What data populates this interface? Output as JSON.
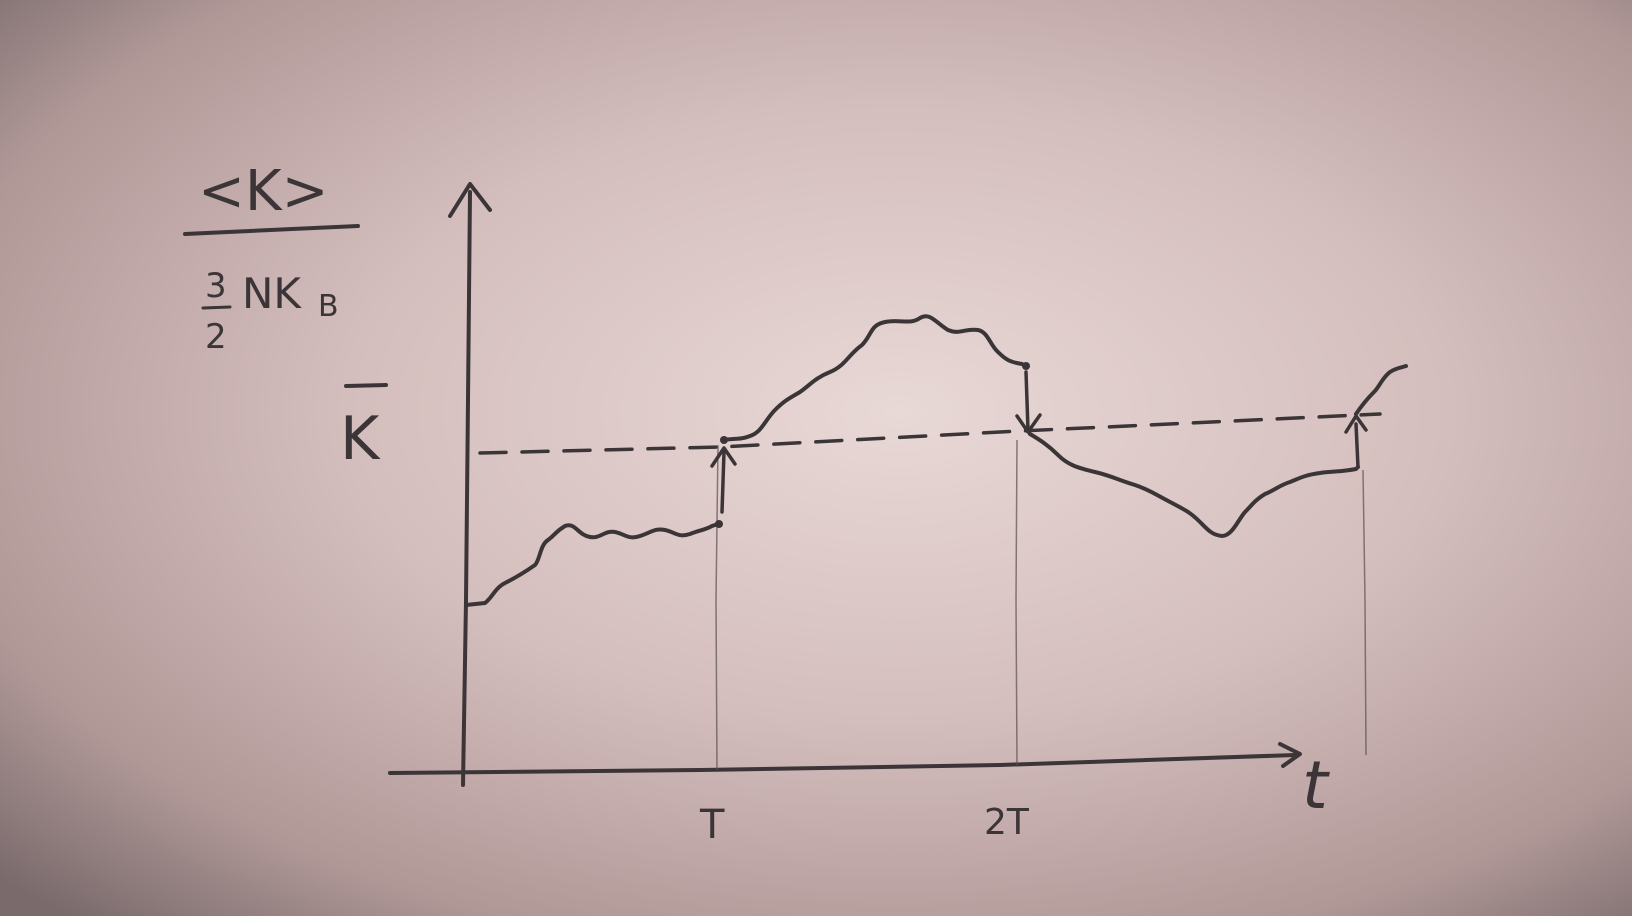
{
  "colors": {
    "ink": "#3b3537",
    "paper_light": "#e8d8d6",
    "paper_mid": "#cbb2b1",
    "paper_dark": "#7a6a6c"
  },
  "labels": {
    "ylabel_numerator": "<K>",
    "ylabel_denominator_fraction_top": "3",
    "ylabel_denominator_fraction_bottom": "2",
    "ylabel_denominator_rest": "NK",
    "ylabel_denominator_subscript": "B",
    "kbar": "K",
    "xlabel": "t",
    "tick_T": "T",
    "tick_2T": "2T"
  }
}
